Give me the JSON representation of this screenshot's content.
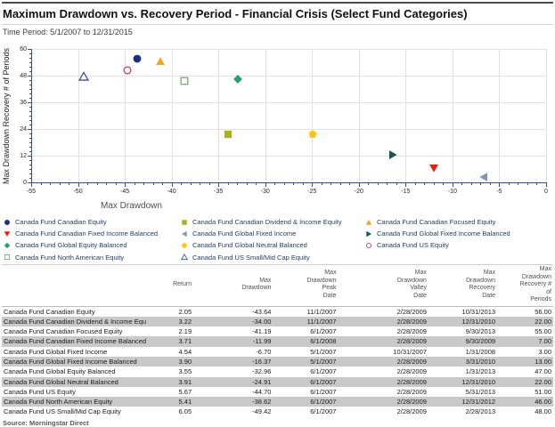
{
  "header": {
    "title": "Maximum Drawdown vs. Recovery Period - Financial Crisis (Select Fund Categories)",
    "subtitle": "Time Period: 5/1/2007 to 12/31/2015"
  },
  "chart_data": {
    "type": "scatter",
    "title": "Maximum Drawdown vs. Recovery Period - Financial Crisis (Select Fund Categories)",
    "xlabel": "Max Drawdown",
    "ylabel": "Max Drawdown Recovery # of Periods",
    "xlim": [
      -55,
      0
    ],
    "ylim": [
      0,
      60
    ],
    "x_ticks": [
      -55,
      -50,
      -45,
      -40,
      -35,
      -30,
      -25,
      -20,
      -15,
      -10,
      -5,
      0
    ],
    "y_ticks": [
      0,
      12,
      24,
      36,
      48,
      60
    ],
    "x_minor_step": 1,
    "y_minor_step": 2,
    "grid": true,
    "legend_position": "below",
    "axis_color": "#3b4a97",
    "grid_color": "#e2e2e2",
    "series": [
      {
        "name": "Canada Fund Canadian Equity",
        "x": -43.64,
        "y": 56,
        "marker": "circle",
        "color": "#1b2e7f",
        "open": false
      },
      {
        "name": "Canada Fund Canadian Dividend & Income Equity",
        "x": -34.0,
        "y": 22,
        "marker": "square",
        "color": "#a7b41f",
        "open": false
      },
      {
        "name": "Canada Fund Canadian Focused Equity",
        "x": -41.19,
        "y": 55,
        "marker": "triangle-up",
        "color": "#f9a21c",
        "open": false
      },
      {
        "name": "Canada Fund Canadian Fixed Income Balanced",
        "x": -11.99,
        "y": 7,
        "marker": "triangle-down",
        "color": "#ec1b0c",
        "open": false
      },
      {
        "name": "Canada Fund Global Fixed Income",
        "x": -6.7,
        "y": 3,
        "marker": "triangle-left",
        "color": "#8496b6",
        "open": false
      },
      {
        "name": "Canada Fund Global Fixed Income Balanced",
        "x": -16.37,
        "y": 13,
        "marker": "triangle-right",
        "color": "#15584f",
        "open": false
      },
      {
        "name": "Canada Fund Global Equity Balanced",
        "x": -32.96,
        "y": 47,
        "marker": "diamond",
        "color": "#2d9e73",
        "open": false
      },
      {
        "name": "Canada Fund Global Neutral Balanced",
        "x": -24.91,
        "y": 22,
        "marker": "pentagon",
        "color": "#fdc50d",
        "open": false
      },
      {
        "name": "Canada Fund US Equity",
        "x": -44.7,
        "y": 51,
        "marker": "circle",
        "color": "#c93a6c",
        "open": true
      },
      {
        "name": "Canada Fund North American Equity",
        "x": -38.62,
        "y": 46,
        "marker": "square",
        "color": "#7da881",
        "open": true
      },
      {
        "name": "Canada Fund US Small/Mid Cap Equity",
        "x": -49.42,
        "y": 48,
        "marker": "triangle-up",
        "color": "#3f51a0",
        "open": true
      }
    ]
  },
  "table": {
    "columns": [
      "",
      "Return",
      "Max\nDrawdown",
      "Max\nDrawdown\nPeak\nDate",
      "Max\nDrawdown\nValley\nDate",
      "Max\nDrawdown\nRecovery\nDate",
      "Max\nDrawdown\nRecovery #\nof\nPeriods"
    ],
    "rows": [
      [
        "Canada Fund Canadian Equity",
        "2.05",
        "-43.64",
        "11/1/2007",
        "2/28/2009",
        "10/31/2013",
        "56.00"
      ],
      [
        "Canada Fund Canadian Dividend & Income Equity",
        "3.22",
        "-34.00",
        "11/1/2007",
        "2/28/2009",
        "12/31/2010",
        "22.00"
      ],
      [
        "Canada Fund Canadian Focused Equity",
        "2.19",
        "-41.19",
        "6/1/2007",
        "2/28/2009",
        "9/30/2013",
        "55.00"
      ],
      [
        "Canada Fund Canadian Fixed Income Balanced",
        "3.71",
        "-11.99",
        "6/1/2008",
        "2/28/2009",
        "9/30/2009",
        "7.00"
      ],
      [
        "Canada Fund Global Fixed Income",
        "4.54",
        "-6.70",
        "5/1/2007",
        "10/31/2007",
        "1/31/2008",
        "3.00"
      ],
      [
        "Canada Fund Global Fixed Income Balanced",
        "3.90",
        "-16.37",
        "5/1/2007",
        "2/28/2009",
        "3/31/2010",
        "13.00"
      ],
      [
        "Canada Fund Global Equity Balanced",
        "3.55",
        "-32.96",
        "6/1/2007",
        "2/28/2009",
        "1/31/2013",
        "47.00"
      ],
      [
        "Canada Fund Global Neutral Balanced",
        "3.91",
        "-24.91",
        "6/1/2007",
        "2/28/2009",
        "12/31/2010",
        "22.00"
      ],
      [
        "Canada Fund US Equity",
        "5.67",
        "-44.70",
        "6/1/2007",
        "2/28/2009",
        "5/31/2013",
        "51.00"
      ],
      [
        "Canada Fund North American Equity",
        "5.41",
        "-38.62",
        "6/1/2007",
        "2/28/2009",
        "12/31/2012",
        "46.00"
      ],
      [
        "Canada Fund US Small/Mid Cap Equity",
        "6.05",
        "-49.42",
        "6/1/2007",
        "2/28/2009",
        "2/28/2013",
        "48.00"
      ]
    ]
  },
  "footer": {
    "source": "Source: Morningstar Direct"
  }
}
